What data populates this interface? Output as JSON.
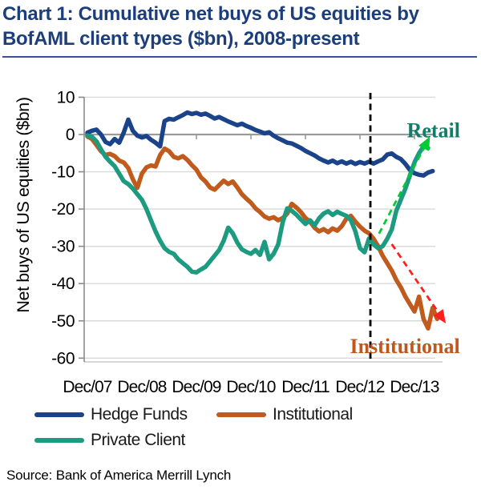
{
  "header": {
    "title_line1": "Chart 1: Cumulative net buys of US equities by",
    "title_line2": "BofAML client types ($bn), 2008-present"
  },
  "footer": {
    "source": "Source: Bank of America Merrill Lynch"
  },
  "chart_data": {
    "type": "line",
    "title": "Chart 1: Cumulative net buys of US equities by BofAML client types ($bn), 2008-present",
    "xlabel": "",
    "ylabel": "Net buys of US equities ($bn)",
    "ylim": [
      -60,
      10
    ],
    "yticks": [
      10,
      0,
      -10,
      -20,
      -30,
      -40,
      -50,
      -60
    ],
    "grid": true,
    "legend_position": "bottom",
    "x_unit": "months since Dec/07",
    "x_ticks": [
      {
        "label": "Dec/07",
        "month": 0
      },
      {
        "label": "Dec/08",
        "month": 12
      },
      {
        "label": "Dec/09",
        "month": 24
      },
      {
        "label": "Dec/10",
        "month": 36
      },
      {
        "label": "Dec/11",
        "month": 48
      },
      {
        "label": "Dec/12",
        "month": 60
      },
      {
        "label": "Dec/13",
        "month": 72
      }
    ],
    "marker_line": {
      "style": "dashed",
      "color": "#000000",
      "month": 62.3
    },
    "series": [
      {
        "name": "Hedge Funds",
        "color": "#1b4389",
        "points": [
          [
            0,
            0.5
          ],
          [
            1,
            1
          ],
          [
            2,
            1.3
          ],
          [
            3,
            0
          ],
          [
            4,
            -2
          ],
          [
            5,
            -2.6
          ],
          [
            6,
            -1.2
          ],
          [
            7,
            -2.2
          ],
          [
            8,
            0.5
          ],
          [
            9,
            4
          ],
          [
            10,
            1
          ],
          [
            11,
            -0.3
          ],
          [
            12,
            -0.8
          ],
          [
            13,
            -0.4
          ],
          [
            14,
            -1.4
          ],
          [
            15,
            -2.2
          ],
          [
            16,
            -3.2
          ],
          [
            17,
            3.6
          ],
          [
            18,
            4.2
          ],
          [
            19,
            4
          ],
          [
            20,
            4.6
          ],
          [
            21,
            5.2
          ],
          [
            22,
            5.9
          ],
          [
            23,
            5.5
          ],
          [
            24,
            5.8
          ],
          [
            25,
            5.3
          ],
          [
            26,
            5.6
          ],
          [
            27,
            5
          ],
          [
            28,
            4.3
          ],
          [
            29,
            4.7
          ],
          [
            30,
            4.1
          ],
          [
            31,
            3.5
          ],
          [
            32,
            3
          ],
          [
            33,
            2.5
          ],
          [
            34,
            2.9
          ],
          [
            35,
            2.3
          ],
          [
            36,
            1.8
          ],
          [
            37,
            1.2
          ],
          [
            38,
            0.8
          ],
          [
            39,
            0.3
          ],
          [
            40,
            0.6
          ],
          [
            41,
            -0.3
          ],
          [
            42,
            -1
          ],
          [
            43,
            -1.6
          ],
          [
            44,
            -2.2
          ],
          [
            45,
            -2.4
          ],
          [
            46,
            -3
          ],
          [
            47,
            -3.6
          ],
          [
            48,
            -4.4
          ],
          [
            49,
            -5
          ],
          [
            50,
            -5.6
          ],
          [
            51,
            -6.4
          ],
          [
            52,
            -7
          ],
          [
            53,
            -7.5
          ],
          [
            54,
            -7
          ],
          [
            55,
            -7.7
          ],
          [
            56,
            -7.2
          ],
          [
            57,
            -7.8
          ],
          [
            58,
            -7.3
          ],
          [
            59,
            -7.9
          ],
          [
            60,
            -7.4
          ],
          [
            61,
            -7.8
          ],
          [
            62,
            -7.3
          ],
          [
            63,
            -7.8
          ],
          [
            64,
            -7.2
          ],
          [
            65,
            -6.7
          ],
          [
            66,
            -5.4
          ],
          [
            67,
            -5.1
          ],
          [
            68,
            -6
          ],
          [
            69,
            -6.6
          ],
          [
            70,
            -7.9
          ],
          [
            71,
            -9.5
          ],
          [
            72,
            -10.4
          ],
          [
            73,
            -10.8
          ],
          [
            74,
            -11
          ],
          [
            75,
            -10.2
          ],
          [
            76,
            -9.8
          ]
        ]
      },
      {
        "name": "Institutional",
        "color": "#c05a1d",
        "points": [
          [
            0,
            -0.5
          ],
          [
            1,
            -1.2
          ],
          [
            2,
            -2.8
          ],
          [
            3,
            -4.5
          ],
          [
            4,
            -5.5
          ],
          [
            5,
            -5.2
          ],
          [
            6,
            -5.8
          ],
          [
            7,
            -7
          ],
          [
            8,
            -7.5
          ],
          [
            9,
            -9
          ],
          [
            10,
            -12
          ],
          [
            11,
            -14.3
          ],
          [
            12,
            -10.5
          ],
          [
            13,
            -8.8
          ],
          [
            14,
            -8.3
          ],
          [
            15,
            -8.6
          ],
          [
            16,
            -5.5
          ],
          [
            17,
            -3.8
          ],
          [
            18,
            -4.5
          ],
          [
            19,
            -6
          ],
          [
            20,
            -6.4
          ],
          [
            21,
            -5.8
          ],
          [
            22,
            -6.8
          ],
          [
            23,
            -8.2
          ],
          [
            24,
            -9.4
          ],
          [
            25,
            -11.5
          ],
          [
            26,
            -12.6
          ],
          [
            27,
            -14.2
          ],
          [
            28,
            -14.8
          ],
          [
            29,
            -13.6
          ],
          [
            30,
            -12.4
          ],
          [
            31,
            -13.3
          ],
          [
            32,
            -12.6
          ],
          [
            33,
            -14.2
          ],
          [
            34,
            -16
          ],
          [
            35,
            -17.2
          ],
          [
            36,
            -18.3
          ],
          [
            37,
            -19.8
          ],
          [
            38,
            -20.8
          ],
          [
            39,
            -22
          ],
          [
            40,
            -22.6
          ],
          [
            41,
            -22.2
          ],
          [
            42,
            -23
          ],
          [
            43,
            -22.4
          ],
          [
            44,
            -21.2
          ],
          [
            45,
            -18.6
          ],
          [
            46,
            -19.6
          ],
          [
            47,
            -20.8
          ],
          [
            48,
            -22.4
          ],
          [
            49,
            -23.4
          ],
          [
            50,
            -25
          ],
          [
            51,
            -26
          ],
          [
            52,
            -25.4
          ],
          [
            53,
            -26.2
          ],
          [
            54,
            -25.2
          ],
          [
            55,
            -25.8
          ],
          [
            56,
            -24.6
          ],
          [
            57,
            -22.6
          ],
          [
            58,
            -21.8
          ],
          [
            59,
            -23.4
          ],
          [
            60,
            -24.7
          ],
          [
            61,
            -25.8
          ],
          [
            62,
            -26.5
          ],
          [
            63,
            -28
          ],
          [
            64,
            -30
          ],
          [
            65,
            -32.5
          ],
          [
            66,
            -34.5
          ],
          [
            67,
            -36.5
          ],
          [
            68,
            -39
          ],
          [
            69,
            -41
          ],
          [
            70,
            -43.5
          ],
          [
            71,
            -45.5
          ],
          [
            72,
            -47.5
          ],
          [
            73,
            -43.5
          ],
          [
            74,
            -49.5
          ],
          [
            75,
            -52
          ],
          [
            76,
            -46.5
          ],
          [
            77,
            -49.5
          ]
        ]
      },
      {
        "name": "Private Client",
        "color": "#1d9b80",
        "points": [
          [
            0,
            -0.3
          ],
          [
            1,
            -0.6
          ],
          [
            2,
            -1.8
          ],
          [
            3,
            -4
          ],
          [
            4,
            -6
          ],
          [
            5,
            -7.3
          ],
          [
            6,
            -8.5
          ],
          [
            7,
            -10.5
          ],
          [
            8,
            -12.5
          ],
          [
            9,
            -13.3
          ],
          [
            10,
            -14.5
          ],
          [
            11,
            -16
          ],
          [
            12,
            -17.5
          ],
          [
            13,
            -20
          ],
          [
            14,
            -23
          ],
          [
            15,
            -26
          ],
          [
            16,
            -28.5
          ],
          [
            17,
            -30.5
          ],
          [
            18,
            -31.5
          ],
          [
            19,
            -32
          ],
          [
            20,
            -33.5
          ],
          [
            21,
            -34.5
          ],
          [
            22,
            -35.5
          ],
          [
            23,
            -36.8
          ],
          [
            24,
            -37
          ],
          [
            25,
            -36.2
          ],
          [
            26,
            -35.5
          ],
          [
            27,
            -34
          ],
          [
            28,
            -32.5
          ],
          [
            29,
            -31
          ],
          [
            30,
            -28.5
          ],
          [
            31,
            -25
          ],
          [
            32,
            -26.5
          ],
          [
            33,
            -29
          ],
          [
            34,
            -30.8
          ],
          [
            35,
            -31.5
          ],
          [
            36,
            -32
          ],
          [
            37,
            -31
          ],
          [
            38,
            -32.3
          ],
          [
            39,
            -28.8
          ],
          [
            40,
            -33.5
          ],
          [
            41,
            -32
          ],
          [
            42,
            -29.5
          ],
          [
            43,
            -23.5
          ],
          [
            44,
            -19.8
          ],
          [
            45,
            -20.5
          ],
          [
            46,
            -21.5
          ],
          [
            47,
            -22.8
          ],
          [
            48,
            -24
          ],
          [
            49,
            -23
          ],
          [
            50,
            -24.4
          ],
          [
            51,
            -22.5
          ],
          [
            52,
            -21.2
          ],
          [
            53,
            -20.6
          ],
          [
            54,
            -21.6
          ],
          [
            55,
            -20.7
          ],
          [
            56,
            -21.3
          ],
          [
            57,
            -21.8
          ],
          [
            58,
            -23
          ],
          [
            59,
            -26
          ],
          [
            60,
            -30.5
          ],
          [
            61,
            -31.6
          ],
          [
            62,
            -27.9
          ],
          [
            63,
            -29.5
          ],
          [
            64,
            -30.5
          ],
          [
            65,
            -30
          ],
          [
            66,
            -28
          ],
          [
            67,
            -25.5
          ],
          [
            68,
            -20.5
          ],
          [
            69,
            -17.5
          ],
          [
            70,
            -14.5
          ],
          [
            71,
            -11
          ],
          [
            72,
            -7.5
          ],
          [
            73,
            -5
          ],
          [
            74,
            -3.2
          ],
          [
            75,
            -3.6
          ]
        ]
      }
    ],
    "legend": [
      {
        "label": "Hedge Funds",
        "color": "#1b4389"
      },
      {
        "label": "Institutional",
        "color": "#c05a1d"
      },
      {
        "label": "Private Client",
        "color": "#1d9b80"
      }
    ],
    "annotations": [
      {
        "text": "Retail",
        "color": "#127c68",
        "month": 76.2,
        "value": 1.2
      },
      {
        "text": "Institutional",
        "color": "#c2571d",
        "month": 69.9,
        "value": -56.7
      }
    ],
    "arrows": [
      {
        "color": "#00cc33",
        "from_month": 64.2,
        "from_value": -26.6,
        "to_month": 75,
        "to_value": -1.5
      },
      {
        "color": "#ff1f1f",
        "from_month": 67,
        "from_value": -29.4,
        "to_month": 78.4,
        "to_value": -49.8
      }
    ]
  }
}
